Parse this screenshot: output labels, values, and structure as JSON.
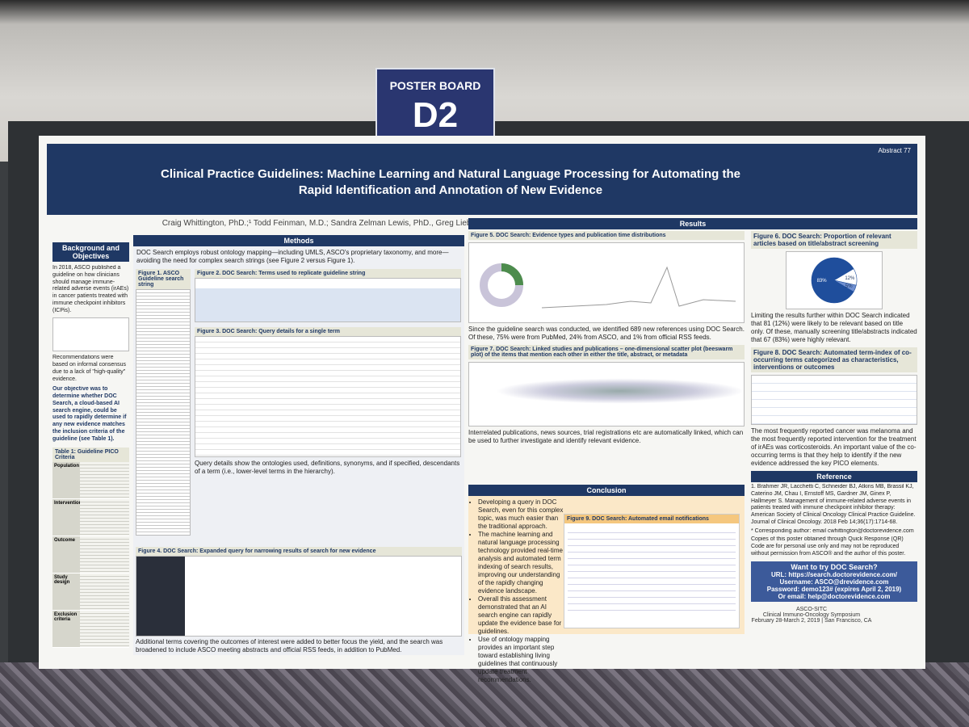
{
  "sign": {
    "line1": "POSTER BOARD",
    "line2": "D2"
  },
  "poster": {
    "abstract": "Abstract 77",
    "title": "Clinical Practice Guidelines: Machine Learning and Natural Language Processing for Automating the Rapid Identification and Annotation of New Evidence",
    "authors": "Craig Whittington, PhD.;¹ Todd Feinman, M.D.; Sandra Zelman Lewis, PhD., Greg Lieberman, B.S.; Michael del Aguila, PhD.; Doctor Evidence, Santa Monica, CA",
    "background": {
      "heading": "Background and Objectives",
      "p1": "In 2018, ASCO published a guideline on how clinicians should manage immune-related adverse events (irAEs) in cancer patients treated with immune checkpoint inhibitors (ICPis).",
      "p2": "Recommendations were based on informal consensus due to a lack of \"high-quality\" evidence.",
      "p3": "Our objective was to determine whether DOC Search, a cloud-based AI search engine, could be used to rapidly determine if any new evidence matches the inclusion criteria of the guideline (see Table 1).",
      "table_title": "Table 1: Guideline PICO Criteria",
      "rows": [
        "Population",
        "Intervention",
        "Outcome",
        "Study design",
        "Exclusion criteria"
      ]
    },
    "methods": {
      "heading": "Methods",
      "intro": "DOC Search employs robust ontology mapping—including UMLS, ASCO's proprietary taxonomy, and more—avoiding the need for complex search strings (see Figure 2 versus Figure 1).",
      "fig1": "Figure 1. ASCO Guideline search string",
      "fig2": "Figure 2. DOC Search: Terms used to replicate guideline string",
      "fig3": "Figure 3. DOC Search: Query details for a single term",
      "fig3_text": "Query details show the ontologies used, definitions, synonyms, and if specified, descendants of a term (i.e., lower-level terms in the hierarchy).",
      "fig4": "Figure 4. DOC Search: Expanded query for narrowing results of search for new evidence",
      "fig4_text": "Additional terms covering the outcomes of interest were added to better focus the yield, and the search was broadened to include ASCO meeting abstracts and official RSS feeds, in addition to PubMed."
    },
    "results": {
      "heading": "Results",
      "fig5": "Figure 5. DOC Search: Evidence types and publication time distributions",
      "fig5_text": "Since the guideline search was conducted, we identified 689 new references using DOC Search. Of these, 75% were from PubMed, 24% from ASCO, and 1% from official RSS feeds.",
      "fig7": "Figure 7. DOC Search: Linked studies and publications – one-dimensional scatter plot (beeswarm plot) of the items that mention each other in either the title, abstract, or metadata",
      "fig7_text": "Interrelated publications, news sources, trial registrations etc are automatically linked, which can be used to further investigate and identify relevant evidence.",
      "fig6": "Figure 6. DOC Search: Proportion of relevant articles based on title/abstract screening",
      "fig6_text": "Limiting the results further within DOC Search indicated that 81 (12%) were likely to be relevant based on title only. Of these, manually screening title/abstracts indicated that 67 (83%) were highly relevant.",
      "fig8": "Figure 8. DOC Search: Automated term-index of co-occurring terms categorized as characteristics, interventions or outcomes",
      "fig8_text": "The most frequently reported cancer was melanoma and the most frequently reported intervention for the treatment of irAEs was corticosteroids. An important value of the co-occurring terms is that they help to identify if the new evidence addressed the key PICO elements."
    },
    "pie": {
      "values": [
        83,
        12,
        5
      ],
      "value_labels": [
        "83%",
        "12%",
        "5%"
      ],
      "colors": [
        "#1f4e9c",
        "#ffffff",
        "#6f8fd0"
      ]
    },
    "conclusion": {
      "heading": "Conclusion",
      "bullets": [
        "Developing a query in DOC Search, even for this complex topic, was much easier than the traditional approach.",
        "The machine learning and natural language processing technology provided real-time analysis and automated term indexing of search results, improving our understanding of the rapidly changing evidence landscape.",
        "Overall this assessment demonstrated that an AI search engine can rapidly update the evidence base for guidelines.",
        "Use of ontology mapping provides an important step toward establishing living guidelines that continuously update treatment recommendations."
      ],
      "fig9": "Figure 9. DOC Search: Automated email notifications"
    },
    "reference": {
      "heading": "Reference",
      "ref1": "1. Brahmer JR, Lacchetti C, Schneider BJ, Atkins MB, Brassil KJ, Caterino JM, Chau I, Ernstoff MS, Gardner JM, Ginex P, Hallmeyer S. Management of immune-related adverse events in patients treated with immune checkpoint inhibitor therapy: American Society of Clinical Oncology Clinical Practice Guideline. Journal of Clinical Oncology. 2018 Feb 14;36(17):1714-68.",
      "corresponding": "* Corresponding author: email cwhittington@doctorevidence.com",
      "copies": "Copies of this poster obtained through Quick Response (QR) Code are for personal use only and may not be reproduced without permission from ASCO® and the author of this poster."
    },
    "try": {
      "heading": "Want to try DOC Search?",
      "lines": [
        "URL: https://search.doctorevidence.com/",
        "Username: ASCO@drevidence.com",
        "Password: demo123# (expires April 2, 2019)",
        "Or email: help@doctorevidence.com"
      ]
    },
    "footer": {
      "line1": "ASCO-SITC",
      "line2": "Clinical Immuno-Oncology Symposium",
      "line3": "February 28-March 2, 2019 | San Francisco, CA"
    }
  }
}
